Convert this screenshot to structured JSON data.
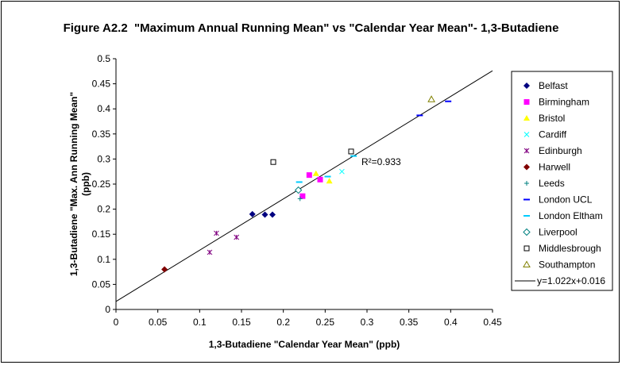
{
  "title": "Figure A2.2  \"Maximum Annual Running Mean\" vs \"Calendar Year Mean\"- 1,3-Butadiene",
  "chart_data": {
    "type": "scatter",
    "xlabel": "1,3-Butadiene  \"Calendar Year Mean\" (ppb)",
    "ylabel_line1": "1,3-Butadiene \"Max. Ann Running Mean\"",
    "ylabel_line2": "(ppb)",
    "xlim": [
      0,
      0.45
    ],
    "ylim": [
      0,
      0.5
    ],
    "x_ticks": [
      "0",
      "0.05",
      "0.1",
      "0.15",
      "0.2",
      "0.25",
      "0.3",
      "0.35",
      "0.4",
      "0.45"
    ],
    "y_ticks": [
      "0",
      "0.05",
      "0.1",
      "0.15",
      "0.2",
      "0.25",
      "0.3",
      "0.35",
      "0.4",
      "0.45",
      "0.5"
    ],
    "grid": false,
    "legend_position": "right",
    "annotation": "R²=0.933",
    "trendline": {
      "label": "y=1.022x+0.016",
      "slope": 1.022,
      "intercept": 0.016,
      "color": "#000000"
    },
    "series": [
      {
        "name": "Belfast",
        "marker": "diamond",
        "color": "#000080",
        "points": [
          [
            0.163,
            0.19
          ],
          [
            0.178,
            0.189
          ],
          [
            0.187,
            0.189
          ]
        ]
      },
      {
        "name": "Birmingham",
        "marker": "square",
        "color": "#FF00FF",
        "points": [
          [
            0.231,
            0.268
          ],
          [
            0.223,
            0.226
          ],
          [
            0.244,
            0.259
          ]
        ]
      },
      {
        "name": "Bristol",
        "marker": "triangle",
        "color": "#FFFF00",
        "points": [
          [
            0.255,
            0.256
          ],
          [
            0.239,
            0.271
          ]
        ]
      },
      {
        "name": "Cardiff",
        "marker": "x",
        "color": "#00FFFF",
        "points": [
          [
            0.27,
            0.275
          ]
        ]
      },
      {
        "name": "Edinburgh",
        "marker": "star",
        "color": "#800080",
        "points": [
          [
            0.12,
            0.152
          ],
          [
            0.144,
            0.144
          ],
          [
            0.112,
            0.114
          ]
        ]
      },
      {
        "name": "Harwell",
        "marker": "diamond",
        "color": "#800000",
        "points": [
          [
            0.058,
            0.08
          ]
        ]
      },
      {
        "name": "Leeds",
        "marker": "plus",
        "color": "#008080",
        "points": [
          [
            0.22,
            0.221
          ]
        ]
      },
      {
        "name": "London UCL",
        "marker": "dash",
        "color": "#0000FF",
        "points": [
          [
            0.397,
            0.415
          ],
          [
            0.363,
            0.387
          ]
        ]
      },
      {
        "name": "London Eltham",
        "marker": "dash",
        "color": "#00CCFF",
        "points": [
          [
            0.219,
            0.254
          ],
          [
            0.253,
            0.265
          ],
          [
            0.284,
            0.306
          ]
        ]
      },
      {
        "name": "Liverpool",
        "marker": "diamond-open",
        "color": "#008080",
        "points": [
          [
            0.218,
            0.238
          ]
        ]
      },
      {
        "name": "Middlesbrough",
        "marker": "square-open",
        "color": "#000000",
        "points": [
          [
            0.188,
            0.294
          ],
          [
            0.281,
            0.315
          ]
        ]
      },
      {
        "name": "Southampton",
        "marker": "triangle-open",
        "color": "#808000",
        "points": [
          [
            0.377,
            0.419
          ]
        ]
      }
    ]
  }
}
